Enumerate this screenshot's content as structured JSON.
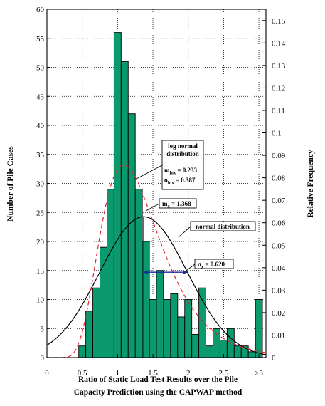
{
  "chart_data": {
    "type": "bar",
    "x_axis": {
      "label_line1": "Ratio of Static Load Test Results over the Pile",
      "label_line2": "Capacity Prediction using the CAPWAP method",
      "range": [
        0,
        3.1
      ],
      "ticks": [
        "0",
        "0.5",
        "1",
        "1.5",
        "2",
        "2.5",
        ">3"
      ],
      "tick_values": [
        0,
        0.5,
        1,
        1.5,
        2,
        2.5,
        3
      ]
    },
    "y_axis_left": {
      "label": "Number of Pile Cases",
      "range": [
        0,
        60
      ],
      "ticks": [
        "0",
        "5",
        "10",
        "15",
        "20",
        "25",
        "30",
        "35",
        "40",
        "45",
        "50",
        "55",
        "60"
      ],
      "tick_values": [
        0,
        5,
        10,
        15,
        20,
        25,
        30,
        35,
        40,
        45,
        50,
        55,
        60
      ]
    },
    "y_axis_right": {
      "label": "Relative Frequency",
      "range": [
        0,
        0.155
      ],
      "ticks": [
        "0",
        "0.01",
        "0.02",
        "0.03",
        "0.04",
        "0.05",
        "0.06",
        "0.07",
        "0.08",
        "0.09",
        "0.1",
        "0.11",
        "0.12",
        "0.13",
        "0.14",
        "0.15"
      ],
      "tick_values": [
        0,
        0.01,
        0.02,
        0.03,
        0.04,
        0.05,
        0.06,
        0.07,
        0.08,
        0.09,
        0.1,
        0.11,
        0.12,
        0.13,
        0.14,
        0.15
      ]
    },
    "bin_width": 0.1,
    "histogram": [
      {
        "x": 0.5,
        "count": 2
      },
      {
        "x": 0.6,
        "count": 8
      },
      {
        "x": 0.7,
        "count": 12
      },
      {
        "x": 0.8,
        "count": 19
      },
      {
        "x": 0.9,
        "count": 29
      },
      {
        "x": 1.0,
        "count": 56
      },
      {
        "x": 1.1,
        "count": 51
      },
      {
        "x": 1.2,
        "count": 42
      },
      {
        "x": 1.3,
        "count": 29
      },
      {
        "x": 1.4,
        "count": 20
      },
      {
        "x": 1.5,
        "count": 10
      },
      {
        "x": 1.6,
        "count": 15
      },
      {
        "x": 1.7,
        "count": 10
      },
      {
        "x": 1.8,
        "count": 11
      },
      {
        "x": 1.9,
        "count": 7
      },
      {
        "x": 2.0,
        "count": 10
      },
      {
        "x": 2.1,
        "count": 4
      },
      {
        "x": 2.2,
        "count": 12
      },
      {
        "x": 2.3,
        "count": 2
      },
      {
        "x": 2.4,
        "count": 5
      },
      {
        "x": 2.5,
        "count": 3
      },
      {
        "x": 2.6,
        "count": 5
      },
      {
        "x": 2.7,
        "count": 2
      },
      {
        "x": 2.8,
        "count": 2
      },
      {
        "x": 2.9,
        "count": 1
      },
      {
        "x": 3.0,
        "count": 10
      }
    ],
    "normal_distribution": {
      "mean": 1.368,
      "std": 0.62,
      "style": "solid",
      "color": "#000000"
    },
    "lognormal_distribution": {
      "mean_ln": 0.233,
      "std_ln": 0.387,
      "style": "dashed",
      "color": "#e8202a"
    },
    "grid": true,
    "grid_style": "dotted",
    "bar_color": "#0a9a6e",
    "annotations": {
      "lognormal_label_1": "log normal",
      "lognormal_label_2": "distribution",
      "m_ln_prefix": "m",
      "m_ln_sub": "lnx",
      "m_ln_value": " = 0.233",
      "s_ln_prefix": "σ",
      "s_ln_sub": "lnx",
      "s_ln_value": " = 0.387",
      "mean_prefix": "m",
      "mean_sub": "x",
      "mean_value": " = 1.368",
      "normal_label": "normal distribution",
      "std_prefix": "σ",
      "std_sub": "x",
      "std_value": " = 0.620"
    },
    "marker_color": "#1a2a9c"
  }
}
